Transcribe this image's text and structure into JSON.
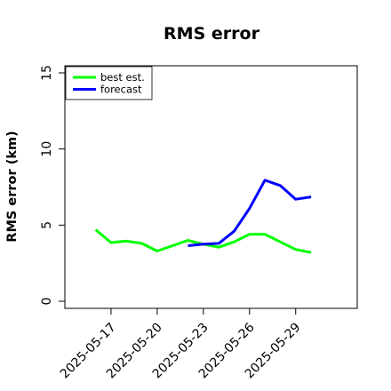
{
  "chart_data": {
    "type": "line",
    "title": "RMS error",
    "xlabel": "",
    "ylabel": "RMS error (km)",
    "ylim": [
      0,
      15
    ],
    "xlim": [
      "2025-05-14",
      "2025-06-02"
    ],
    "y_ticks": [
      0,
      5,
      10,
      15
    ],
    "x_ticks": [
      "2025-05-17",
      "2025-05-20",
      "2025-05-23",
      "2025-05-26",
      "2025-05-29"
    ],
    "grid": false,
    "legend": "top-left",
    "series": [
      {
        "name": "best est.",
        "color": "#00ff00",
        "x": [
          "2025-05-16",
          "2025-05-17",
          "2025-05-18",
          "2025-05-19",
          "2025-05-20",
          "2025-05-21",
          "2025-05-22",
          "2025-05-23",
          "2025-05-24",
          "2025-05-25",
          "2025-05-26",
          "2025-05-27",
          "2025-05-28",
          "2025-05-29",
          "2025-05-30"
        ],
        "values": [
          4.7,
          3.85,
          3.95,
          3.8,
          3.3,
          3.65,
          4.0,
          3.75,
          3.55,
          3.9,
          4.4,
          4.4,
          3.9,
          3.4,
          3.2
        ]
      },
      {
        "name": "forecast",
        "color": "#0000ff",
        "x": [
          "2025-05-22",
          "2025-05-23",
          "2025-05-24",
          "2025-05-25",
          "2025-05-26",
          "2025-05-27",
          "2025-05-28",
          "2025-05-29",
          "2025-05-30"
        ],
        "values": [
          3.65,
          3.75,
          3.8,
          4.6,
          6.1,
          7.95,
          7.6,
          6.7,
          6.85
        ]
      }
    ]
  }
}
